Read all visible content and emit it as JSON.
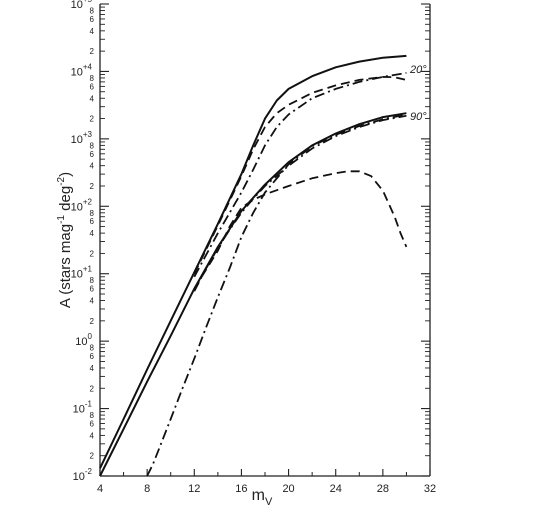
{
  "chart_data": {
    "type": "line",
    "title": "",
    "xlabel": "m",
    "xlabel_sub": "V",
    "ylabel": "A (stars mag",
    "ylabel_exp1": "-1",
    "ylabel_mid": " deg",
    "ylabel_exp2": "-2",
    "ylabel_end": ")",
    "xlim": [
      4,
      32
    ],
    "ylim": [
      0.01,
      100000
    ],
    "yscale": "log",
    "grid": false,
    "legend": "none",
    "x_ticks": [
      "4",
      "8",
      "12",
      "16",
      "20",
      "24",
      "28",
      "32"
    ],
    "y_decades": [
      {
        "base": "10",
        "exp": "-2"
      },
      {
        "base": "10",
        "exp": "-1"
      },
      {
        "base": "10",
        "exp": "0"
      },
      {
        "base": "10",
        "exp": "+1"
      },
      {
        "base": "10",
        "exp": "+2"
      },
      {
        "base": "10",
        "exp": "+3"
      },
      {
        "base": "10",
        "exp": "+4"
      },
      {
        "base": "10",
        "exp": "+5"
      }
    ],
    "y_minor_labels": [
      "2",
      "4",
      "6",
      "8"
    ],
    "annotations": [
      {
        "text": "20°",
        "x": 30.3,
        "y": 9500
      },
      {
        "text": "90°",
        "x": 30.3,
        "y": 1900
      }
    ],
    "series": [
      {
        "style": "solid",
        "group": "20°",
        "x": [
          4,
          6,
          8,
          10,
          12,
          14,
          16,
          17,
          18,
          19,
          20,
          22,
          24,
          26,
          28,
          30
        ],
        "y": [
          0.013,
          0.07,
          0.38,
          2.0,
          10.5,
          55,
          300,
          800,
          2000,
          3700,
          5500,
          8500,
          11500,
          14000,
          16000,
          17000
        ]
      },
      {
        "style": "dashed",
        "group": "20°",
        "x": [
          12,
          14,
          16,
          17,
          18,
          19,
          20,
          22,
          24,
          26,
          28,
          29,
          30
        ],
        "y": [
          10,
          52,
          280,
          700,
          1500,
          2400,
          3200,
          4800,
          6200,
          7500,
          8300,
          8200,
          7500
        ]
      },
      {
        "style": "dashdot",
        "group": "20°",
        "x": [
          12,
          14,
          16,
          17,
          18,
          19,
          20,
          22,
          24,
          26,
          28,
          30
        ],
        "y": [
          9,
          40,
          160,
          350,
          800,
          1500,
          2300,
          4000,
          5500,
          7000,
          8300,
          9500
        ]
      },
      {
        "style": "solid",
        "group": "90°",
        "x": [
          4,
          6,
          8,
          10,
          12,
          14,
          16,
          18,
          20,
          22,
          24,
          26,
          28,
          30
        ],
        "y": [
          0.01,
          0.05,
          0.25,
          1.2,
          6,
          25,
          85,
          210,
          450,
          800,
          1200,
          1650,
          2100,
          2400
        ]
      },
      {
        "style": "dashed",
        "group": "90°",
        "x": [
          12,
          14,
          15,
          16,
          17,
          18,
          20,
          22,
          24,
          25,
          26,
          27,
          28,
          29,
          29.5,
          30
        ],
        "y": [
          6,
          22,
          50,
          95,
          125,
          150,
          200,
          260,
          310,
          330,
          330,
          280,
          170,
          70,
          40,
          25
        ]
      },
      {
        "style": "dashdot",
        "group": "90°",
        "x": [
          8,
          8.5,
          9,
          10,
          11,
          12,
          13,
          14,
          15,
          16,
          17,
          18,
          20,
          22,
          24,
          26,
          28,
          30
        ],
        "y": [
          0.01,
          0.015,
          0.025,
          0.07,
          0.2,
          0.55,
          1.6,
          4.5,
          12,
          35,
          80,
          160,
          420,
          780,
          1150,
          1550,
          1950,
          2300
        ]
      },
      {
        "style": "dashdot",
        "group": "90° upper",
        "x": [
          12,
          13,
          14,
          15,
          16,
          17,
          18,
          20,
          22,
          24,
          26,
          28,
          30
        ],
        "y": [
          5.5,
          12,
          24,
          45,
          80,
          130,
          200,
          400,
          720,
          1100,
          1500,
          1900,
          2200
        ]
      }
    ]
  }
}
